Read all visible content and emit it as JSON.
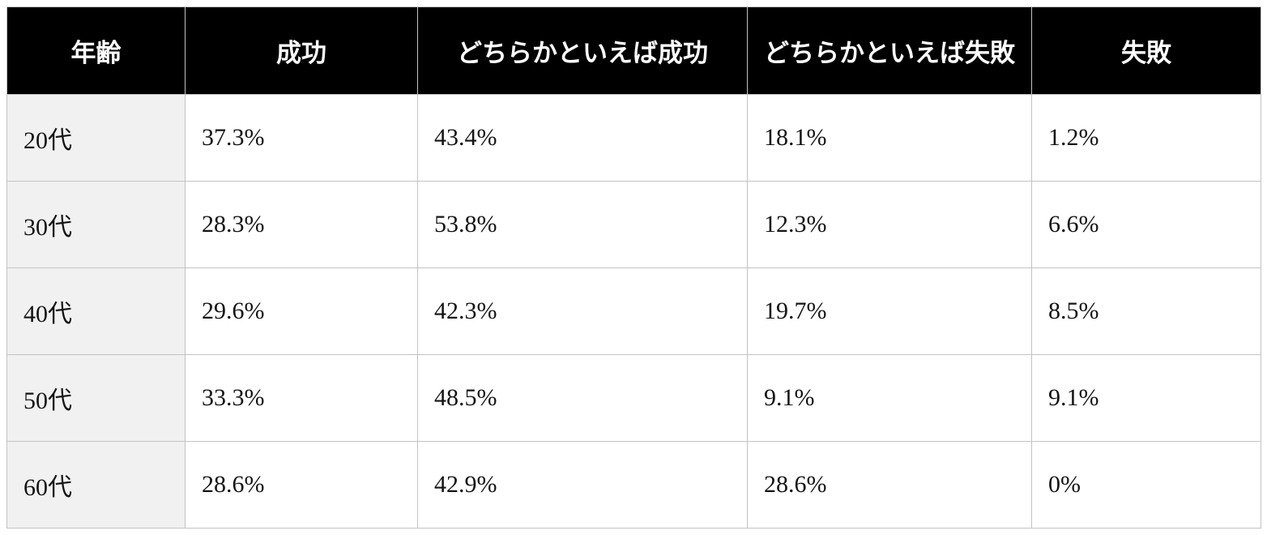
{
  "accent_colors": {
    "header_bg": "#000000",
    "header_text": "#ffffff",
    "row_label_bg": "#f1f1f1",
    "border": "#c3c3c3"
  },
  "chart_data": {
    "type": "table",
    "columns": [
      "年齢",
      "成功",
      "どちらかといえば成功",
      "どちらかといえば失敗",
      "失敗"
    ],
    "rows": [
      {
        "label": "20代",
        "values": [
          "37.3%",
          "43.4%",
          "18.1%",
          "1.2%"
        ]
      },
      {
        "label": "30代",
        "values": [
          "28.3%",
          "53.8%",
          "12.3%",
          "6.6%"
        ]
      },
      {
        "label": "40代",
        "values": [
          "29.6%",
          "42.3%",
          "19.7%",
          "8.5%"
        ]
      },
      {
        "label": "50代",
        "values": [
          "33.3%",
          "48.5%",
          "9.1%",
          "9.1%"
        ]
      },
      {
        "label": "60代",
        "values": [
          "28.6%",
          "42.9%",
          "28.6%",
          "0%"
        ]
      }
    ]
  }
}
